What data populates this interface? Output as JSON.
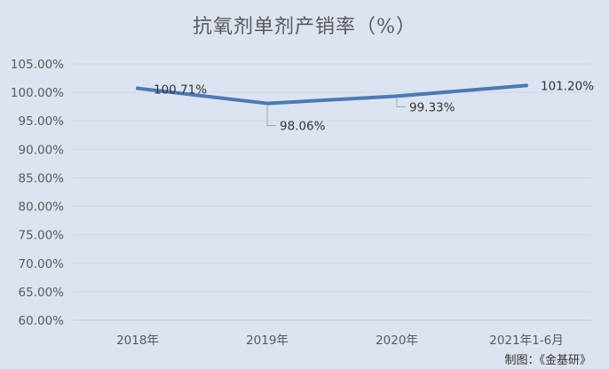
{
  "chart_data": {
    "type": "line",
    "title": "抗氧剂单剂产销率（%）",
    "categories": [
      "2018年",
      "2019年",
      "2020年",
      "2021年1-6月"
    ],
    "series": [
      {
        "values": [
          100.71,
          98.06,
          99.33,
          101.2
        ],
        "color": "#4a7ab5"
      }
    ],
    "data_labels": [
      "100.71%",
      "98.06%",
      "99.33%",
      "101.20%"
    ],
    "y_ticks": [
      "60.00%",
      "65.00%",
      "70.00%",
      "75.00%",
      "80.00%",
      "85.00%",
      "90.00%",
      "95.00%",
      "100.00%",
      "105.00%"
    ],
    "ylim": [
      60,
      105
    ],
    "grid": true,
    "legend": "none"
  },
  "credit": "制图：《金基研》"
}
